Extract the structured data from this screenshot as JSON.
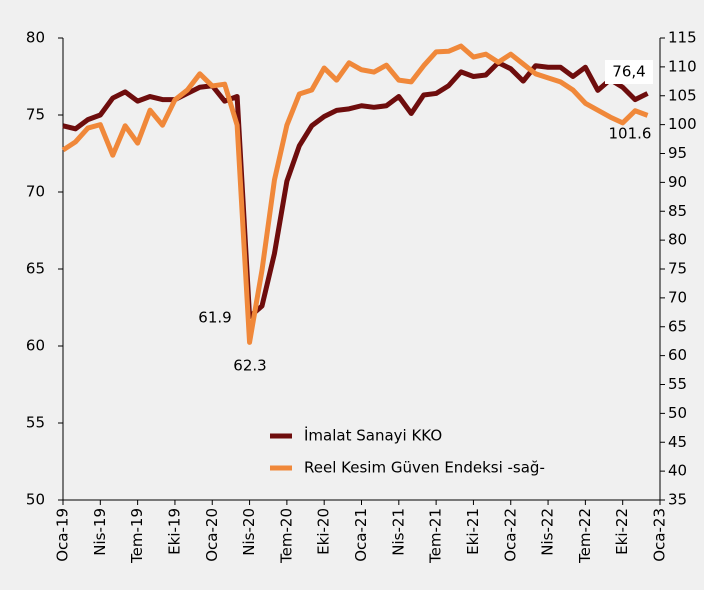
{
  "chart_data": {
    "type": "line",
    "categories": [
      "Oca-19",
      null,
      null,
      "Nis-19",
      null,
      null,
      "Tem-19",
      null,
      null,
      "Eki-19",
      null,
      null,
      "Oca-20",
      null,
      null,
      "Nis-20",
      null,
      null,
      "Tem-20",
      null,
      null,
      "Eki-20",
      null,
      null,
      "Oca-21",
      null,
      null,
      "Nis-21",
      null,
      null,
      "Tem-21",
      null,
      null,
      "Eki-21",
      null,
      null,
      "Oca-22",
      null,
      null,
      "Nis-22",
      null,
      null,
      "Tem-22",
      null,
      null,
      "Eki-22",
      null,
      null,
      "Oca-23"
    ],
    "series": [
      {
        "name": "İmalat Sanayi KKO",
        "color": "#6e0d0d",
        "axis": "y",
        "values": [
          74.3,
          74.1,
          74.7,
          75.0,
          76.1,
          76.5,
          75.9,
          76.2,
          76.0,
          76.0,
          76.4,
          76.8,
          76.9,
          75.9,
          76.2,
          61.9,
          62.6,
          66.0,
          70.7,
          73.0,
          74.3,
          74.9,
          75.3,
          75.4,
          75.6,
          75.5,
          75.6,
          76.2,
          75.1,
          76.3,
          76.4,
          76.9,
          77.8,
          77.5,
          77.6,
          78.4,
          78.0,
          77.2,
          78.2,
          78.1,
          78.1,
          77.5,
          78.1,
          76.6,
          77.3,
          76.8,
          76.0,
          76.4,
          null
        ]
      },
      {
        "name": "Reel Kesim Güven Endeksi -sağ-",
        "color": "#f0883a",
        "axis": "y2",
        "values": [
          95.6,
          97.0,
          99.4,
          100.0,
          94.7,
          99.8,
          96.8,
          102.5,
          99.9,
          104.3,
          106.0,
          108.8,
          106.7,
          107.0,
          99.9,
          62.3,
          74.8,
          90.4,
          99.9,
          105.3,
          106.0,
          109.8,
          107.7,
          110.7,
          109.5,
          109.1,
          110.3,
          107.7,
          107.4,
          110.2,
          112.6,
          112.7,
          113.6,
          111.7,
          112.2,
          110.8,
          112.2,
          110.5,
          108.8,
          108.1,
          107.4,
          106.0,
          103.7,
          102.5,
          101.3,
          100.3,
          102.4,
          101.6,
          null
        ]
      }
    ],
    "ylim": [
      50,
      80
    ],
    "yticks": [
      50,
      55,
      60,
      65,
      70,
      75,
      80
    ],
    "y2lim": [
      35,
      115
    ],
    "y2ticks": [
      35,
      40,
      45,
      50,
      55,
      60,
      65,
      70,
      75,
      80,
      85,
      90,
      95,
      100,
      105,
      110,
      115
    ],
    "annotations": [
      "61.9",
      "62.3",
      "76,4",
      "101.6"
    ],
    "legend": "lower center"
  }
}
